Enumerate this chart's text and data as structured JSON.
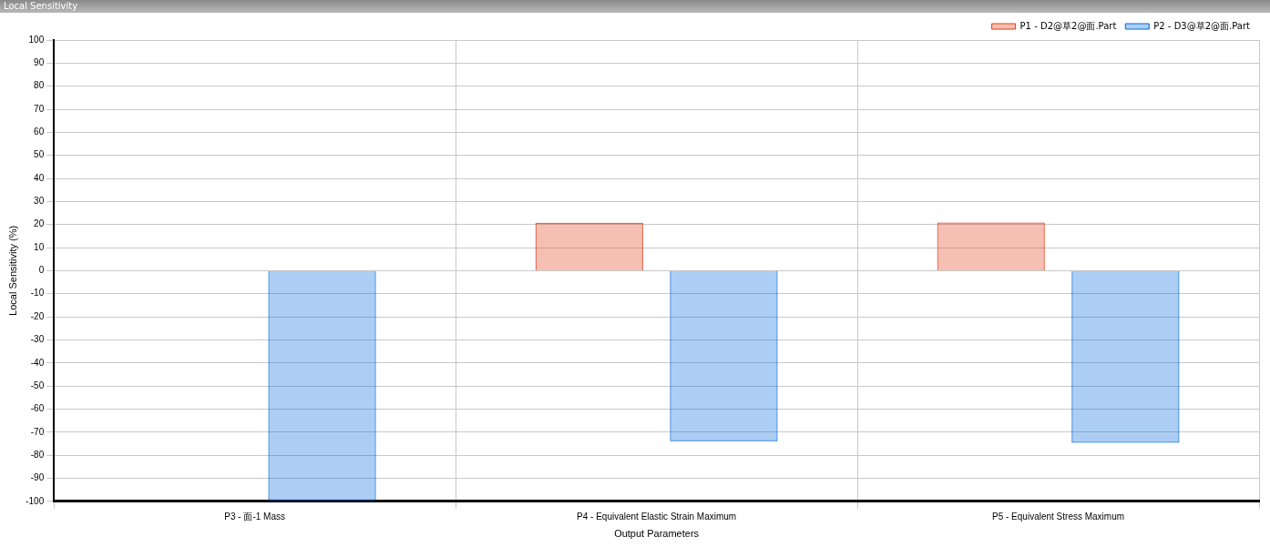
{
  "chart_data": {
    "type": "bar",
    "title": "Local Sensitivity",
    "xlabel": "Output Parameters",
    "ylabel": "Local Sensitivity (%)",
    "categories": [
      "P3 - 面-1 Mass",
      "P4 - Equivalent Elastic Strain Maximum",
      "P5 - Equivalent Stress Maximum"
    ],
    "series": [
      {
        "name": "P1 - D2@草2@面.Part",
        "color": "#e03c14",
        "values": [
          0,
          20.8,
          20.9
        ]
      },
      {
        "name": "P2 - D3@草2@面.Part",
        "color": "#0066dd",
        "values": [
          -99.6,
          -73.9,
          -74.6
        ]
      }
    ],
    "ylim": [
      -100,
      100
    ],
    "yticks": [
      -100,
      -90,
      -80,
      -70,
      -60,
      -50,
      -40,
      -30,
      -20,
      -10,
      0,
      10,
      20,
      30,
      40,
      50,
      60,
      70,
      80,
      90,
      100
    ],
    "grid": true,
    "legend": "top right"
  }
}
